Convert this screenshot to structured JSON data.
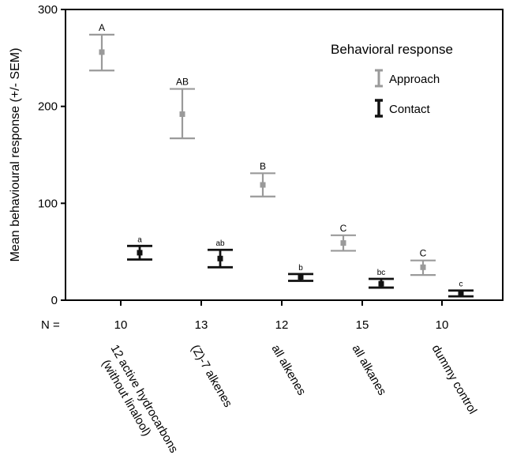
{
  "chart_data": {
    "type": "errorbar",
    "xlabel": "",
    "ylabel": "Mean behavioural response (+/- SEM)",
    "ylim": [
      0,
      300
    ],
    "yticks": [
      0,
      100,
      200,
      300
    ],
    "categories": [
      "12 active hydrocarbons (without linalool)",
      "(Z)-7 alkenes",
      "all alkenes",
      "all alkanes",
      "dummy control"
    ],
    "category_lines": [
      [
        "12 active hydrocarbons",
        "(without linalool)"
      ],
      [
        "(Z)-7 alkenes"
      ],
      [
        "all alkenes"
      ],
      [
        "all alkanes"
      ],
      [
        "dummy control"
      ]
    ],
    "n_label": "N =",
    "n_values": [
      "10",
      "13",
      "12",
      "15",
      "10"
    ],
    "legend": {
      "title": "Behavioral response",
      "position": "top-right"
    },
    "series": [
      {
        "name": "Approach",
        "color": "#9a9a9a",
        "means": [
          256,
          192,
          119,
          59,
          34
        ],
        "lower": [
          237,
          167,
          107,
          51,
          26
        ],
        "upper": [
          274,
          218,
          131,
          67,
          41
        ],
        "letters": [
          "A",
          "AB",
          "B",
          "C",
          "C"
        ]
      },
      {
        "name": "Contact",
        "color": "#111111",
        "means": [
          49,
          43,
          24,
          17,
          7
        ],
        "lower": [
          42,
          34,
          20,
          13,
          4
        ],
        "upper": [
          56,
          52,
          27,
          22,
          10
        ],
        "letters": [
          "a",
          "ab",
          "b",
          "bc",
          "c"
        ]
      }
    ]
  }
}
